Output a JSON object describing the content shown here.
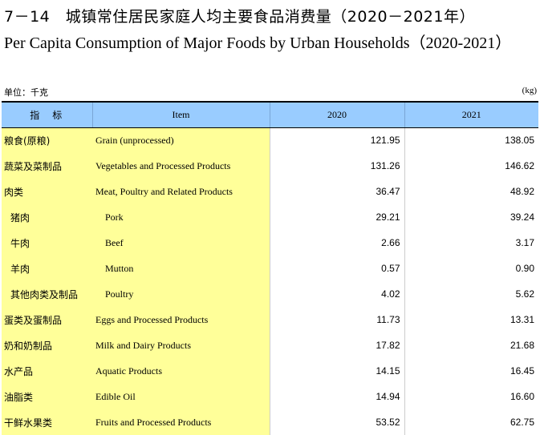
{
  "title_cn": "7－14　城镇常住居民家庭人均主要食品消费量（2020－2021年）",
  "title_en": "Per Capita Consumption of Major Foods by Urban Households（2020-2021）",
  "unit_cn": "单位：千克",
  "unit_en": "(kg)",
  "headers": {
    "cn": "指　标",
    "en": "Item",
    "y1": "2020",
    "y2": "2021"
  },
  "rows": [
    {
      "cn": "粮食(原粮)",
      "en": "Grain (unprocessed)",
      "v2020": "121.95",
      "v2021": "138.05"
    },
    {
      "cn": "蔬菜及菜制品",
      "en": "Vegetables and Processed Products",
      "v2020": "131.26",
      "v2021": "146.62"
    },
    {
      "cn": "肉类",
      "en": "Meat, Poultry and Related Products",
      "v2020": "36.47",
      "v2021": "48.92"
    },
    {
      "cn": "猪肉",
      "en": "Pork",
      "v2020": "29.21",
      "v2021": "39.24"
    },
    {
      "cn": "牛肉",
      "en": "Beef",
      "v2020": "2.66",
      "v2021": "3.17"
    },
    {
      "cn": "羊肉",
      "en": "Mutton",
      "v2020": "0.57",
      "v2021": "0.90"
    },
    {
      "cn": "其他肉类及制品",
      "en": "Poultry",
      "v2020": "4.02",
      "v2021": "5.62"
    },
    {
      "cn": "蛋类及蛋制品",
      "en": "Eggs and Processed Products",
      "v2020": "11.73",
      "v2021": "13.31"
    },
    {
      "cn": "奶和奶制品",
      "en": "Milk and Dairy Products",
      "v2020": "17.82",
      "v2021": "21.68"
    },
    {
      "cn": "水产品",
      "en": "Aquatic Products",
      "v2020": "14.15",
      "v2021": "16.45"
    },
    {
      "cn": "油脂类",
      "en": "Edible Oil",
      "v2020": "14.94",
      "v2021": "16.60"
    },
    {
      "cn": "干鲜水果类",
      "en": "Fruits and Processed Products",
      "v2020": "53.52",
      "v2021": "62.75"
    }
  ]
}
